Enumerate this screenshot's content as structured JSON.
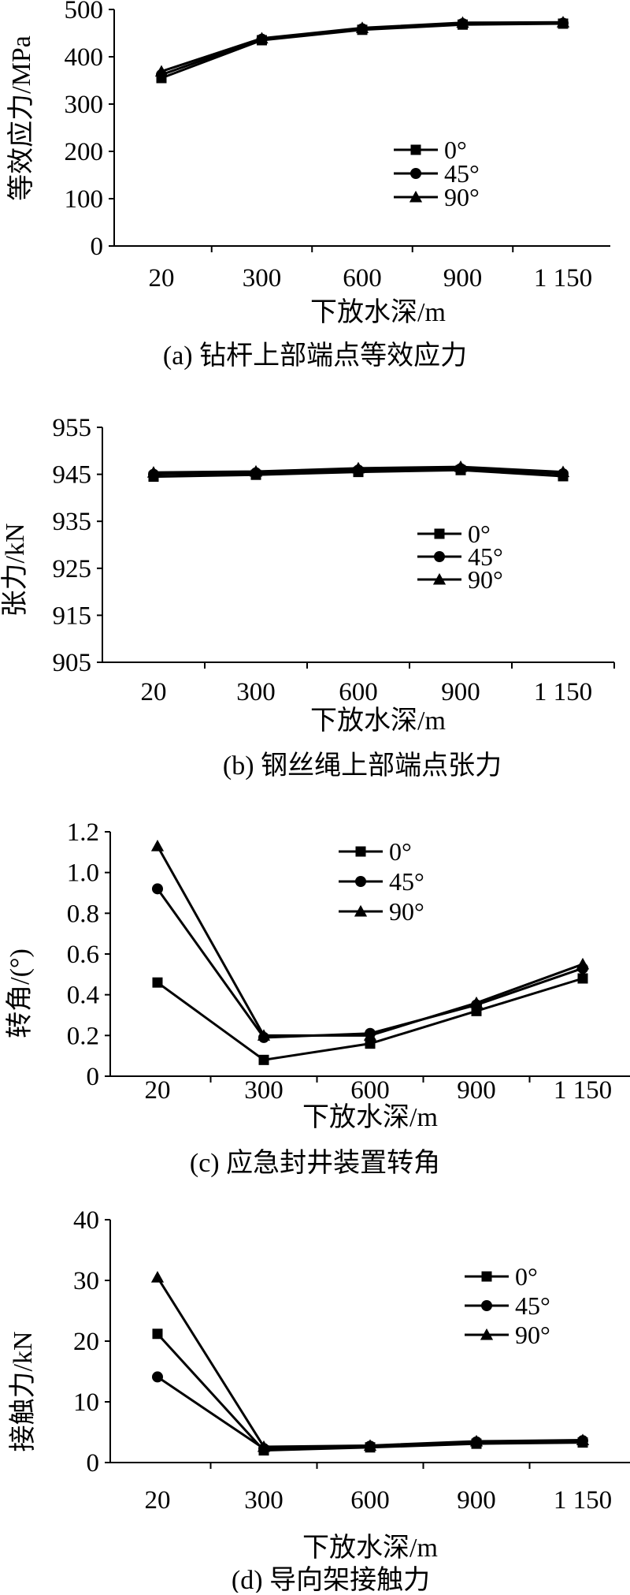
{
  "chart_data": [
    {
      "type": "line",
      "caption": "(a) 钻杆上部端点等效应力",
      "xlabel": "下放水深/m",
      "ylabel": "等效应力/MPa",
      "categories": [
        "20",
        "300",
        "600",
        "900",
        "1 150"
      ],
      "ylim": [
        0,
        500
      ],
      "yticks": [
        0,
        100,
        200,
        300,
        400,
        500
      ],
      "ytick_labels": [
        "0",
        "100",
        "200",
        "300",
        "400",
        "500"
      ],
      "legend_position": "center-right",
      "series": [
        {
          "name": "0°",
          "marker": "square",
          "values": [
            355,
            435,
            457,
            468,
            470
          ]
        },
        {
          "name": "45°",
          "marker": "circle",
          "values": [
            362,
            437,
            459,
            470,
            471
          ]
        },
        {
          "name": "90°",
          "marker": "triangle",
          "values": [
            369,
            439,
            461,
            472,
            473
          ]
        }
      ]
    },
    {
      "type": "line",
      "caption": "(b) 钢丝绳上部端点张力",
      "xlabel": "下放水深/m",
      "ylabel": "张力/kN",
      "categories": [
        "20",
        "300",
        "600",
        "900",
        "1 150"
      ],
      "ylim": [
        905,
        955
      ],
      "yticks": [
        905,
        915,
        925,
        935,
        945,
        955
      ],
      "ytick_labels": [
        "905",
        "915",
        "925",
        "935",
        "945",
        "955"
      ],
      "legend_position": "center-right",
      "series": [
        {
          "name": "0°",
          "marker": "square",
          "values": [
            944.5,
            944.9,
            945.5,
            945.9,
            944.6
          ]
        },
        {
          "name": "45°",
          "marker": "circle",
          "values": [
            945.0,
            945.3,
            945.9,
            946.2,
            945.1
          ]
        },
        {
          "name": "90°",
          "marker": "triangle",
          "values": [
            945.4,
            945.6,
            946.3,
            946.6,
            945.5
          ]
        }
      ]
    },
    {
      "type": "line",
      "caption": "(c) 应急封井装置转角",
      "xlabel": "下放水深/m",
      "ylabel": "转角/(°)",
      "categories": [
        "20",
        "300",
        "600",
        "900",
        "1 150"
      ],
      "ylim": [
        0,
        1.2
      ],
      "yticks": [
        0,
        0.2,
        0.4,
        0.6,
        0.8,
        1.0,
        1.2
      ],
      "ytick_labels": [
        "0",
        "0.2",
        "0.4",
        "0.6",
        "0.8",
        "1.0",
        "1.2"
      ],
      "legend_position": "top-right",
      "series": [
        {
          "name": "0°",
          "marker": "square",
          "values": [
            0.46,
            0.08,
            0.16,
            0.32,
            0.48
          ]
        },
        {
          "name": "45°",
          "marker": "circle",
          "values": [
            0.92,
            0.19,
            0.21,
            0.35,
            0.53
          ]
        },
        {
          "name": "90°",
          "marker": "triangle",
          "values": [
            1.13,
            0.2,
            0.2,
            0.36,
            0.55
          ]
        }
      ]
    },
    {
      "type": "line",
      "caption": "(d) 导向架接触力",
      "xlabel": "下放水深/m",
      "ylabel": "接触力/kN",
      "categories": [
        "20",
        "300",
        "600",
        "900",
        "1 150"
      ],
      "ylim": [
        0,
        40
      ],
      "yticks": [
        0,
        10,
        20,
        30,
        40
      ],
      "ytick_labels": [
        "0",
        "10",
        "20",
        "30",
        "40"
      ],
      "legend_position": "top-right",
      "series": [
        {
          "name": "0°",
          "marker": "square",
          "values": [
            21.2,
            2.0,
            2.5,
            3.1,
            3.3
          ]
        },
        {
          "name": "45°",
          "marker": "circle",
          "values": [
            14.1,
            2.3,
            2.7,
            3.4,
            3.6
          ]
        },
        {
          "name": "90°",
          "marker": "triangle",
          "values": [
            30.5,
            2.6,
            2.8,
            3.5,
            3.7
          ]
        }
      ]
    }
  ]
}
